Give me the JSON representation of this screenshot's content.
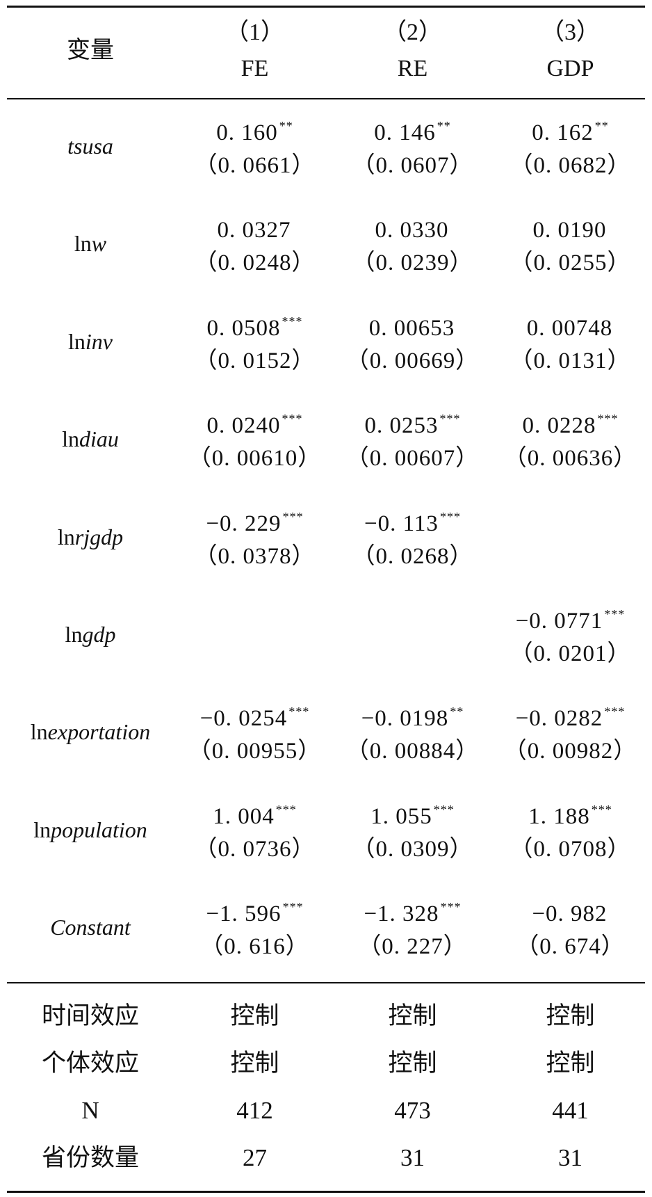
{
  "header": {
    "var_label": "变量",
    "columns": [
      {
        "num": "（1）",
        "name": "FE"
      },
      {
        "num": "（2）",
        "name": "RE"
      },
      {
        "num": "（3）",
        "name": "GDP"
      }
    ]
  },
  "rows": [
    {
      "var_prefix": "",
      "var_italic": "tsusa",
      "cells": [
        {
          "coef": "0. 160",
          "stars": "**",
          "se": "（0. 0661）"
        },
        {
          "coef": "0. 146",
          "stars": "**",
          "se": "（0. 0607）"
        },
        {
          "coef": "0. 162",
          "stars": "**",
          "se": "（0. 0682）"
        }
      ]
    },
    {
      "var_prefix": "ln",
      "var_italic": "w",
      "cells": [
        {
          "coef": "0. 0327",
          "stars": "",
          "se": "（0. 0248）"
        },
        {
          "coef": "0. 0330",
          "stars": "",
          "se": "（0. 0239）"
        },
        {
          "coef": "0. 0190",
          "stars": "",
          "se": "（0. 0255）"
        }
      ]
    },
    {
      "var_prefix": "ln",
      "var_italic": "inv",
      "cells": [
        {
          "coef": "0. 0508",
          "stars": "***",
          "se": "（0. 0152）"
        },
        {
          "coef": "0. 00653",
          "stars": "",
          "se": "（0. 00669）"
        },
        {
          "coef": "0. 00748",
          "stars": "",
          "se": "（0. 0131）"
        }
      ]
    },
    {
      "var_prefix": "ln",
      "var_italic": "diau",
      "cells": [
        {
          "coef": "0. 0240",
          "stars": "***",
          "se": "（0. 00610）"
        },
        {
          "coef": "0. 0253",
          "stars": "***",
          "se": "（0. 00607）"
        },
        {
          "coef": "0. 0228",
          "stars": "***",
          "se": "（0. 00636）"
        }
      ]
    },
    {
      "var_prefix": "ln",
      "var_italic": "rjgdp",
      "cells": [
        {
          "coef": "−0. 229",
          "stars": "***",
          "se": "（0. 0378）"
        },
        {
          "coef": "−0. 113",
          "stars": "***",
          "se": "（0. 0268）"
        },
        {
          "coef": "",
          "stars": "",
          "se": ""
        }
      ]
    },
    {
      "var_prefix": "ln",
      "var_italic": "gdp",
      "cells": [
        {
          "coef": "",
          "stars": "",
          "se": ""
        },
        {
          "coef": "",
          "stars": "",
          "se": ""
        },
        {
          "coef": "−0. 0771",
          "stars": "***",
          "se": "（0. 0201）"
        }
      ]
    },
    {
      "var_prefix": "ln",
      "var_italic": "exportation",
      "cells": [
        {
          "coef": "−0. 0254",
          "stars": "***",
          "se": "（0. 00955）"
        },
        {
          "coef": "−0. 0198",
          "stars": "**",
          "se": "（0. 00884）"
        },
        {
          "coef": "−0. 0282",
          "stars": "***",
          "se": "（0. 00982）"
        }
      ]
    },
    {
      "var_prefix": "ln",
      "var_italic": "population",
      "cells": [
        {
          "coef": "1. 004",
          "stars": "***",
          "se": "（0. 0736）"
        },
        {
          "coef": "1. 055",
          "stars": "***",
          "se": "（0. 0309）"
        },
        {
          "coef": "1. 188",
          "stars": "***",
          "se": "（0. 0708）"
        }
      ]
    },
    {
      "var_prefix": "",
      "var_italic": "Constant",
      "cells": [
        {
          "coef": "−1. 596",
          "stars": "***",
          "se": "（0. 616）"
        },
        {
          "coef": "−1. 328",
          "stars": "***",
          "se": "（0. 227）"
        },
        {
          "coef": "−0. 982",
          "stars": "",
          "se": "（0. 674）"
        }
      ]
    }
  ],
  "footer": [
    {
      "label": "时间效应",
      "values": [
        "控制",
        "控制",
        "控制"
      ]
    },
    {
      "label": "个体效应",
      "values": [
        "控制",
        "控制",
        "控制"
      ]
    },
    {
      "label": "N",
      "values": [
        "412",
        "473",
        "441"
      ]
    },
    {
      "label": "省份数量",
      "values": [
        "27",
        "31",
        "31"
      ]
    }
  ]
}
